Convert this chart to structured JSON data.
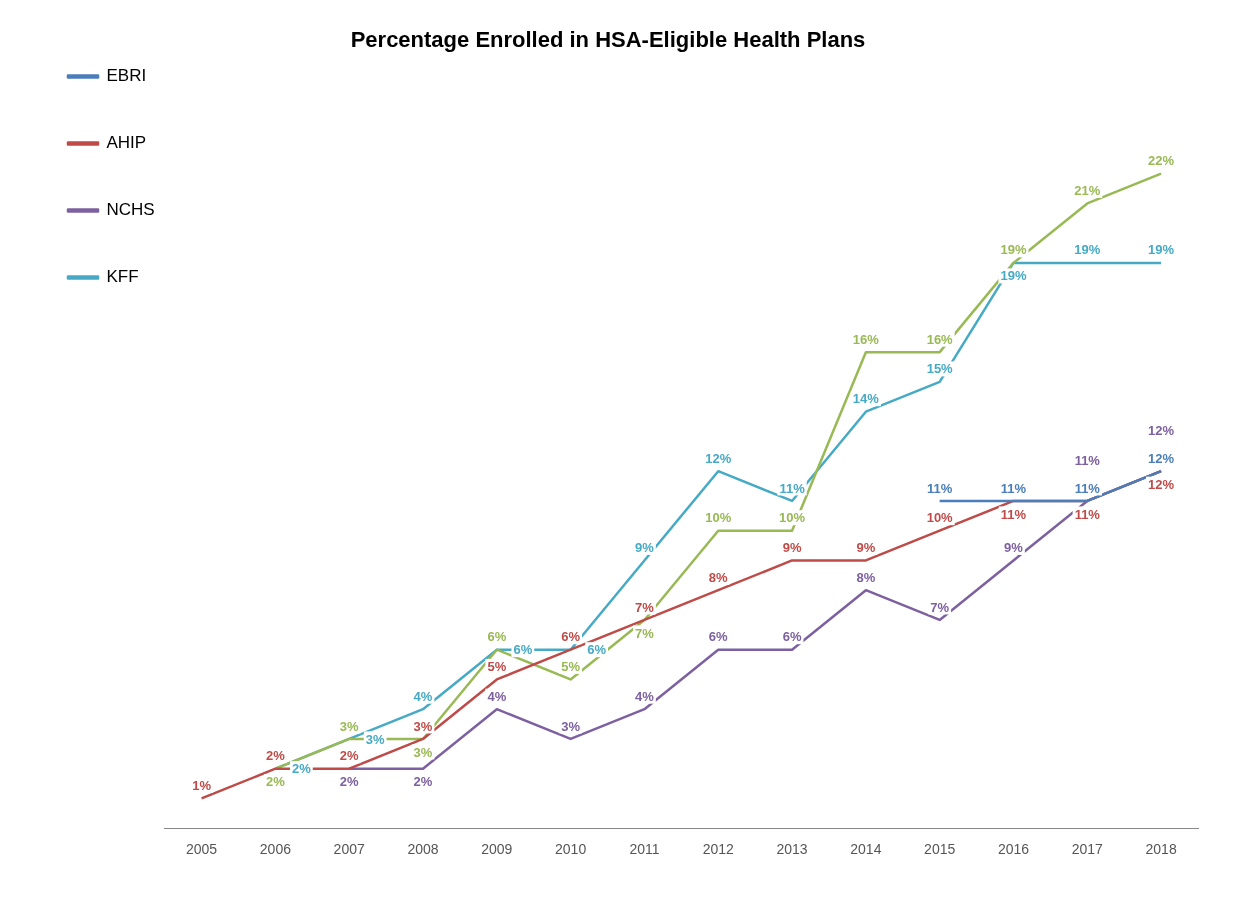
{
  "chart_data": {
    "type": "line",
    "title": "Percentage Enrolled in HSA-Eligible Health Plans",
    "categories": [
      "2005",
      "2006",
      "2007",
      "2008",
      "2009",
      "2010",
      "2011",
      "2012",
      "2013",
      "2014",
      "2015",
      "2016",
      "2017",
      "2018"
    ],
    "tick_labels": "x",
    "legend": "top left",
    "marker": "none",
    "line_style": "solid",
    "series": [
      {
        "name": "EBRI",
        "color": "#4a7ebb",
        "values": [
          null,
          null,
          null,
          null,
          null,
          null,
          null,
          null,
          null,
          null,
          11,
          11,
          11,
          12
        ],
        "value_labels": [
          null,
          null,
          null,
          null,
          null,
          null,
          null,
          null,
          null,
          null,
          "11%",
          "11%",
          "11%",
          "12%"
        ]
      },
      {
        "name": "AHIP",
        "color": "#be4b48",
        "values": [
          1,
          2,
          2,
          3,
          5,
          6,
          7,
          8,
          9,
          9,
          10,
          11,
          11,
          12
        ],
        "value_labels": [
          "1%",
          "2%",
          "2%",
          "3%",
          "5%",
          "6%",
          "7%",
          "8%",
          "9%",
          "9%",
          "10%",
          "11%",
          "11%",
          "12%"
        ]
      },
      {
        "color": "#98b954",
        "values": [
          null,
          2,
          3,
          3,
          6,
          5,
          7,
          10,
          10,
          16,
          16,
          19,
          21,
          22
        ],
        "value_labels": [
          null,
          "2%",
          "3%",
          "3%",
          "6%",
          "5%",
          "7%",
          "10%",
          "10%",
          "16%",
          "16%",
          "19%",
          "21%",
          "22%"
        ]
      },
      {
        "name": "NCHS",
        "color": "#7d60a0",
        "values": [
          null,
          null,
          2,
          2,
          4,
          3,
          4,
          6,
          6,
          8,
          7,
          9,
          11,
          12
        ],
        "value_labels": [
          null,
          null,
          "2%",
          "2%",
          "4%",
          "3%",
          "4%",
          "6%",
          "6%",
          "8%",
          "7%",
          "9%",
          "11%",
          "12%"
        ]
      },
      {
        "name": "KFF",
        "color": "#46aac5",
        "values": [
          null,
          2,
          3,
          4,
          6,
          6,
          9,
          12,
          11,
          14,
          15,
          19,
          19,
          19
        ],
        "value_labels": [
          null,
          "2%",
          "3%",
          "4%",
          "6%",
          "6%",
          "9%",
          "12%",
          "11%",
          "14%",
          "15%",
          "19%",
          "19%",
          "19%"
        ]
      }
    ]
  }
}
